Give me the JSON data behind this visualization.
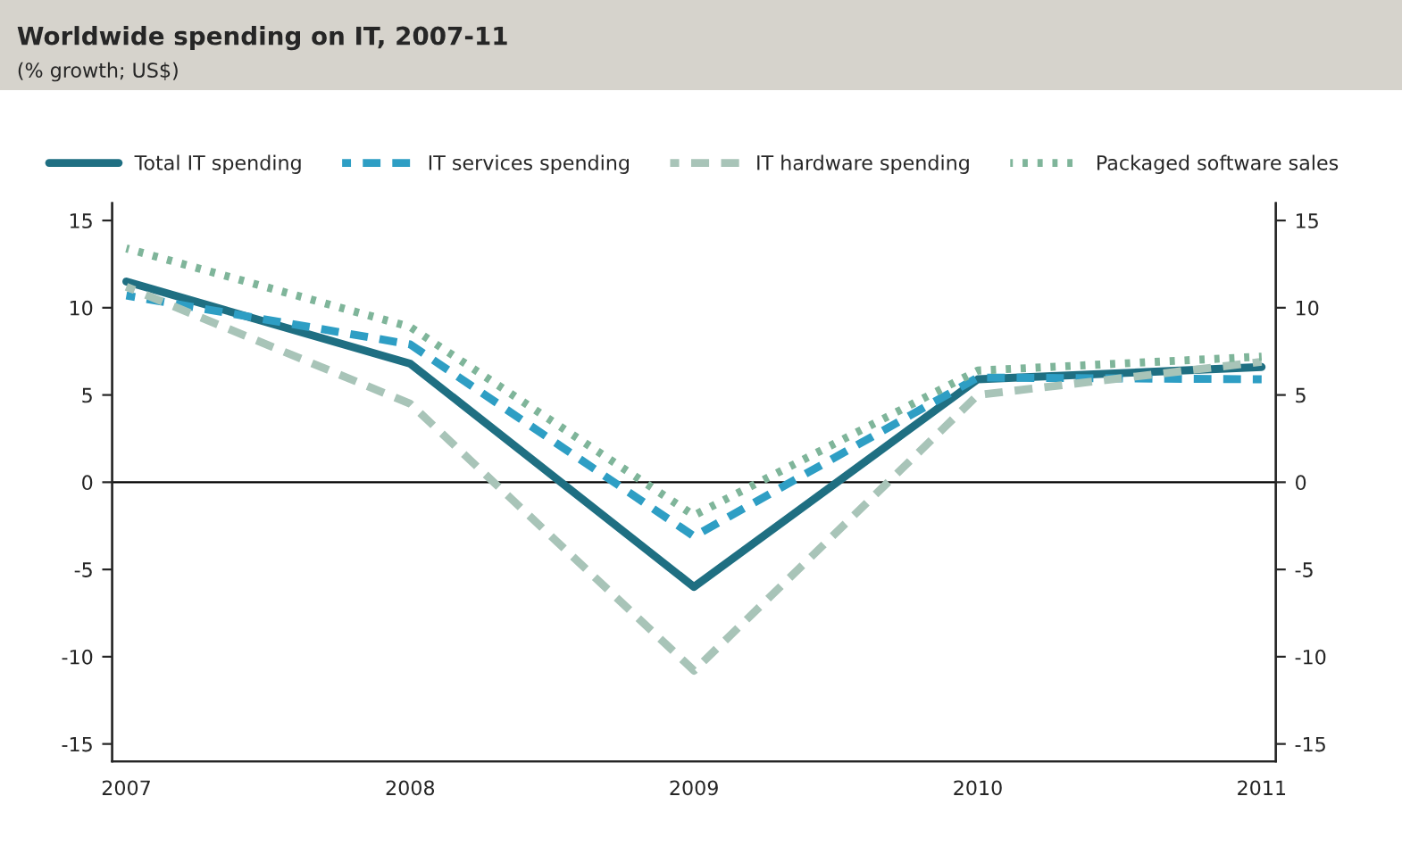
{
  "chart_data": {
    "type": "line",
    "title": "Worldwide spending on IT, 2007-11",
    "subtitle": "(% growth; US$)",
    "categories": [
      "2007",
      "2008",
      "2009",
      "2010",
      "2011"
    ],
    "series": [
      {
        "name": "Total IT spending",
        "color": "#1f6f82",
        "line_style": "solid",
        "values": [
          11.5,
          6.8,
          -6,
          5.9,
          6.6
        ]
      },
      {
        "name": "IT services spending",
        "color": "#2e9ec4",
        "line_style": "dashed",
        "values": [
          10.7,
          7.9,
          -3.1,
          6,
          5.9
        ]
      },
      {
        "name": "IT hardware spending",
        "color": "#a8c4b8",
        "line_style": "dashed",
        "values": [
          11.2,
          4.5,
          -10.8,
          5,
          6.9
        ]
      },
      {
        "name": "Packaged software sales",
        "color": "#7fb59a",
        "line_style": "dotted",
        "values": [
          13.4,
          8.9,
          -1.9,
          6.4,
          7.2
        ]
      }
    ],
    "ylim": [
      -16,
      16
    ],
    "yticks": [
      -15,
      -10,
      -5,
      0,
      5,
      10,
      15
    ],
    "y2lim": [
      -16,
      16
    ],
    "y2ticks": [
      -15,
      -10,
      -5,
      0,
      5,
      10,
      15
    ],
    "ref_lines": [
      {
        "axis": "y",
        "value": 0,
        "color": "#000000"
      }
    ],
    "grid": false,
    "legend": "top",
    "marker": "none"
  }
}
